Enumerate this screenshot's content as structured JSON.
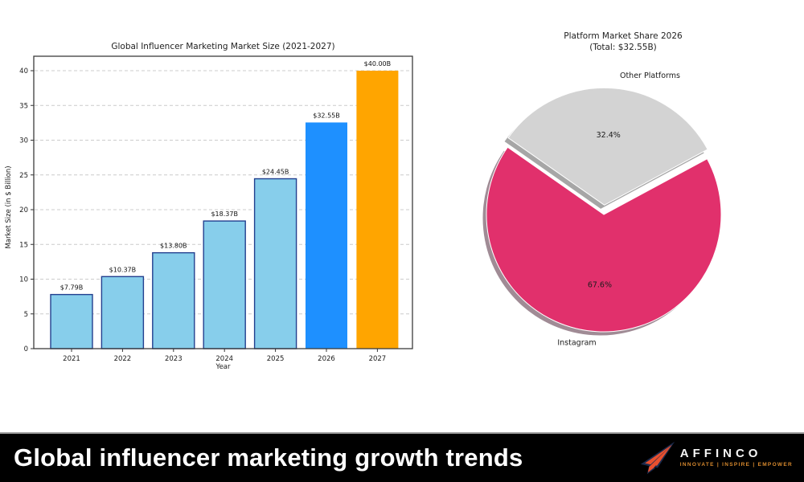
{
  "banner": {
    "title": "Global influencer marketing growth trends",
    "background": "#000000",
    "divider_color": "#9e9e9e",
    "text_color": "#ffffff",
    "logo": {
      "brand": "AFFINCO",
      "tagline": "INNOVATE | INSPIRE | EMPOWER",
      "brand_color": "#f5f5f5",
      "tagline_color": "#d98a2e",
      "plane_fill": "#e8502f",
      "plane_outline": "#1b2b4d"
    }
  },
  "chart_data": [
    {
      "type": "bar",
      "title": "Global Influencer Marketing Market Size (2021-2027)",
      "xlabel": "Year",
      "ylabel": "Market Size (in $ Billion)",
      "categories": [
        "2021",
        "2022",
        "2023",
        "2024",
        "2025",
        "2026",
        "2027"
      ],
      "values": [
        7.79,
        10.37,
        13.8,
        18.37,
        24.45,
        32.55,
        40.0
      ],
      "bar_labels": [
        "$7.79B",
        "$10.37B",
        "$13.80B",
        "$18.37B",
        "$24.45B",
        "$32.55B",
        "$40.00B"
      ],
      "bar_colors": [
        "#87CEEB",
        "#87CEEB",
        "#87CEEB",
        "#87CEEB",
        "#87CEEB",
        "#1E90FF",
        "#FFA500"
      ],
      "bar_edge_colors": [
        "#23408F",
        "#23408F",
        "#23408F",
        "#23408F",
        "#23408F",
        "none",
        "none"
      ],
      "ylim": [
        0,
        42
      ],
      "yticks": [
        0,
        5,
        10,
        15,
        20,
        25,
        30,
        35,
        40
      ],
      "grid": "horizontal-dashed",
      "grid_color": "#cccccc",
      "legend_position": "none"
    },
    {
      "type": "pie",
      "title": "Platform Market Share 2026",
      "subtitle": "(Total: $32.55B)",
      "labels": [
        "Instagram",
        "Other Platforms"
      ],
      "values": [
        67.6,
        32.4
      ],
      "pct_labels": [
        "67.6%",
        "32.4%"
      ],
      "colors": [
        "#E1306C",
        "#D3D3D3"
      ],
      "shadow_colors": [
        "#A08B95",
        "#A6A6A6"
      ],
      "explode": [
        0,
        0.08
      ],
      "startangle": 145,
      "shadow": true,
      "legend_position": "none"
    }
  ]
}
